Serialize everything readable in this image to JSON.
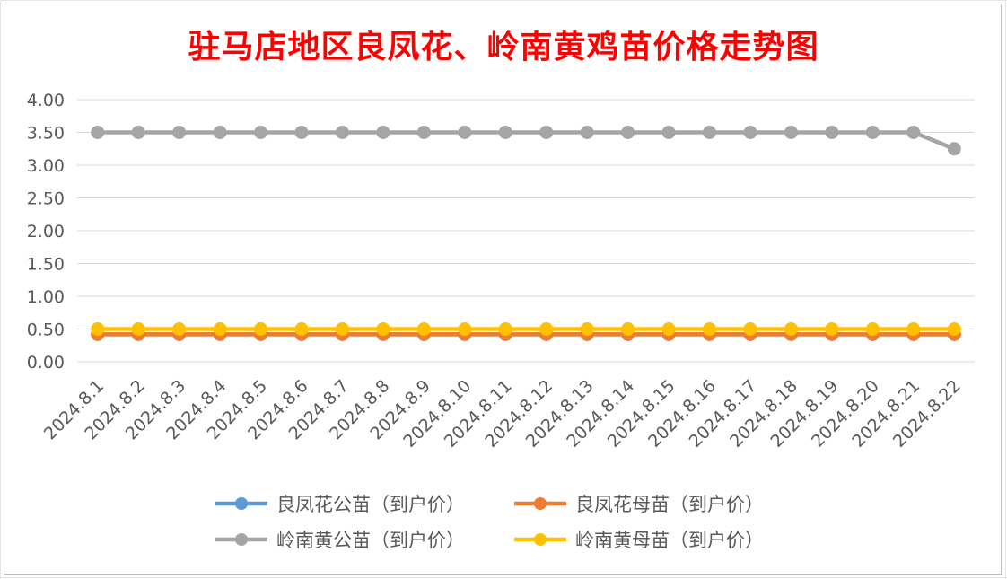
{
  "chart_data": {
    "type": "line",
    "title": "驻马店地区良凤花、岭南黄鸡苗价格走势图",
    "xlabel": "",
    "ylabel": "",
    "ylim": [
      0,
      4
    ],
    "yticks": [
      "0.00",
      "0.50",
      "1.00",
      "1.50",
      "2.00",
      "2.50",
      "3.00",
      "3.50",
      "4.00"
    ],
    "grid": true,
    "legend_position": "bottom",
    "categories": [
      "2024.8.1",
      "2024.8.2",
      "2024.8.3",
      "2024.8.4",
      "2024.8.5",
      "2024.8.6",
      "2024.8.7",
      "2024.8.8",
      "2024.8.9",
      "2024.8.10",
      "2024.8.11",
      "2024.8.12",
      "2024.8.13",
      "2024.8.14",
      "2024.8.15",
      "2024.8.16",
      "2024.8.17",
      "2024.8.18",
      "2024.8.19",
      "2024.8.20",
      "2024.8.21",
      "2024.8.22"
    ],
    "series": [
      {
        "name": "良凤花公苗（到户价）",
        "color": "#5b9bd5",
        "values": [
          0.42,
          0.42,
          0.42,
          0.42,
          0.42,
          0.42,
          0.42,
          0.42,
          0.42,
          0.42,
          0.42,
          0.42,
          0.42,
          0.42,
          0.42,
          0.42,
          0.42,
          0.42,
          0.42,
          0.42,
          0.42,
          0.42
        ]
      },
      {
        "name": "良凤花母苗（到户价）",
        "color": "#ed7d31",
        "values": [
          0.42,
          0.42,
          0.42,
          0.42,
          0.42,
          0.42,
          0.42,
          0.42,
          0.42,
          0.42,
          0.42,
          0.42,
          0.42,
          0.42,
          0.42,
          0.42,
          0.42,
          0.42,
          0.42,
          0.42,
          0.42,
          0.42
        ]
      },
      {
        "name": "岭南黄公苗（到户价）",
        "color": "#a5a5a5",
        "values": [
          3.5,
          3.5,
          3.5,
          3.5,
          3.5,
          3.5,
          3.5,
          3.5,
          3.5,
          3.5,
          3.5,
          3.5,
          3.5,
          3.5,
          3.5,
          3.5,
          3.5,
          3.5,
          3.5,
          3.5,
          3.5,
          3.25
        ]
      },
      {
        "name": "岭南黄母苗（到户价）",
        "color": "#ffc000",
        "values": [
          0.5,
          0.5,
          0.5,
          0.5,
          0.5,
          0.5,
          0.5,
          0.5,
          0.5,
          0.5,
          0.5,
          0.5,
          0.5,
          0.5,
          0.5,
          0.5,
          0.5,
          0.5,
          0.5,
          0.5,
          0.5,
          0.5
        ]
      }
    ]
  }
}
